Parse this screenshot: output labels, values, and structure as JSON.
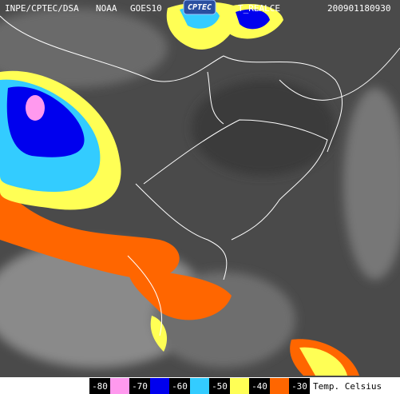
{
  "header": {
    "agency": "INPE/CPTEC/DSA",
    "source": "NOAA",
    "satellite": "GOES10",
    "logo": "CPTEC",
    "product": "T_REALCE",
    "timestamp": "200901180930"
  },
  "legend": {
    "labels": [
      "-80",
      "-70",
      "-60",
      "-50",
      "-40",
      "-30"
    ],
    "colors": [
      "#ff99ee",
      "#0000ee",
      "#33ccff",
      "#ffff55",
      "#ff6600"
    ],
    "unit": "Temp. Celsius"
  }
}
